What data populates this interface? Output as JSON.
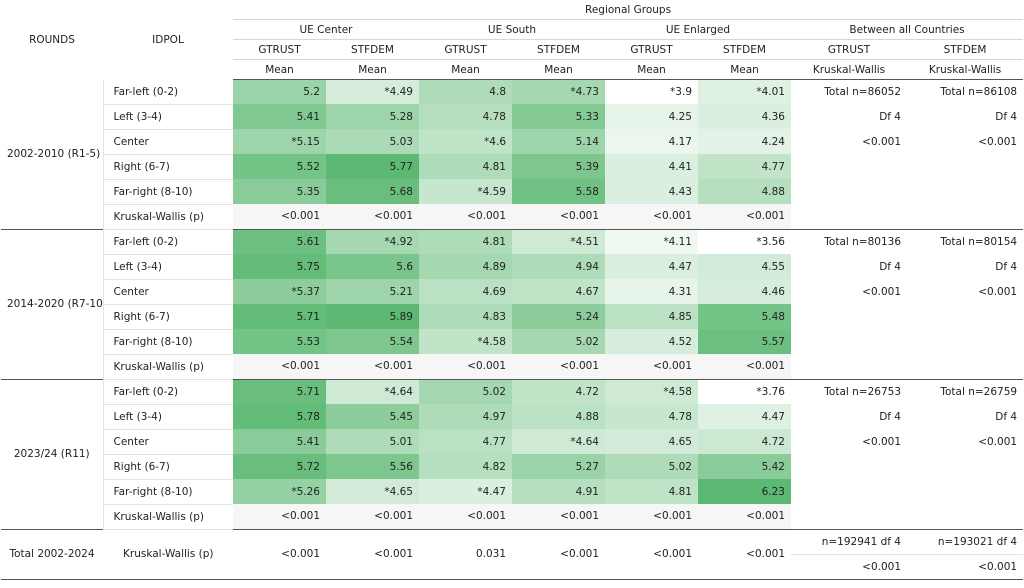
{
  "header": {
    "rounds": "ROUNDS",
    "idpol": "IDPOL",
    "regional_groups": "Regional Groups",
    "groups": [
      "UE Center",
      "UE South",
      "UE Enlarged",
      "Between all Countries"
    ],
    "vars": [
      "GTRUST",
      "STFDEM",
      "GTRUST",
      "STFDEM",
      "GTRUST",
      "STFDEM",
      "GTRUST",
      "STFDEM"
    ],
    "stats": [
      "Mean",
      "Mean",
      "Mean",
      "Mean",
      "Mean",
      "Mean",
      "Kruskal-Wallis",
      "Kruskal-Wallis"
    ]
  },
  "colors": {
    "cell_light": "#ffffff",
    "cell_dark": "#5cb872",
    "kw_bg": "#f6f6f6",
    "rule": "#555555"
  },
  "blocks": [
    {
      "round": "2002-2010 (R1-5)",
      "rows": [
        {
          "label": "Far-left (0-2)",
          "cells": [
            "5.2",
            "*4.49",
            "4.8",
            "*4.73",
            "*3.9",
            "*4.01"
          ],
          "shade": [
            0.62,
            0.25,
            0.5,
            0.55,
            0.0,
            0.2
          ],
          "side": [
            "Total n=86052",
            "Total n=86108"
          ]
        },
        {
          "label": "Left (3-4)",
          "cells": [
            "5.41",
            "5.28",
            "4.78",
            "5.33",
            "4.25",
            "4.36"
          ],
          "shade": [
            0.78,
            0.6,
            0.45,
            0.75,
            0.15,
            0.22
          ],
          "side": [
            "Df 4",
            "Df 4"
          ]
        },
        {
          "label": "Center",
          "cells": [
            "*5.15",
            "5.03",
            "*4.6",
            "5.14",
            "4.17",
            "4.24"
          ],
          "shade": [
            0.6,
            0.52,
            0.4,
            0.6,
            0.12,
            0.18
          ],
          "side": [
            "<0.001",
            "<0.001"
          ]
        },
        {
          "label": "Right (6-7)",
          "cells": [
            "5.52",
            "5.77",
            "4.81",
            "5.39",
            "4.41",
            "4.77"
          ],
          "shade": [
            0.85,
            1.0,
            0.5,
            0.8,
            0.22,
            0.38
          ],
          "side": [
            "",
            ""
          ]
        },
        {
          "label": "Far-right (8-10)",
          "cells": [
            "5.35",
            "5.68",
            "*4.59",
            "5.58",
            "4.43",
            "4.88"
          ],
          "shade": [
            0.72,
            0.92,
            0.35,
            0.88,
            0.22,
            0.45
          ],
          "side": [
            "",
            ""
          ]
        }
      ],
      "kw": {
        "label": "Kruskal-Wallis (p)",
        "cells": [
          "<0.001",
          "<0.001",
          "<0.001",
          "<0.001",
          "<0.001",
          "<0.001"
        ]
      }
    },
    {
      "round": "2014-2020 (R7-10)",
      "rows": [
        {
          "label": "Far-left (0-2)",
          "cells": [
            "5.61",
            "*4.92",
            "4.81",
            "*4.51",
            "*4.11",
            "*3.56"
          ],
          "shade": [
            0.9,
            0.55,
            0.5,
            0.3,
            0.1,
            0.0
          ],
          "side": [
            "Total n=80136",
            "Total n=80154"
          ]
        },
        {
          "label": "Left (3-4)",
          "cells": [
            "5.75",
            "5.6",
            "4.89",
            "4.94",
            "4.47",
            "4.55"
          ],
          "shade": [
            0.95,
            0.82,
            0.55,
            0.5,
            0.22,
            0.28
          ],
          "side": [
            "Df 4",
            "Df 4"
          ]
        },
        {
          "label": "Center",
          "cells": [
            "*5.37",
            "5.21",
            "4.69",
            "4.67",
            "4.31",
            "4.46"
          ],
          "shade": [
            0.7,
            0.6,
            0.42,
            0.38,
            0.15,
            0.25
          ],
          "side": [
            "<0.001",
            "<0.001"
          ]
        },
        {
          "label": "Right (6-7)",
          "cells": [
            "5.71",
            "5.89",
            "4.83",
            "5.24",
            "4.85",
            "5.48"
          ],
          "shade": [
            0.95,
            1.0,
            0.5,
            0.7,
            0.42,
            0.85
          ],
          "side": [
            "",
            ""
          ]
        },
        {
          "label": "Far-right (8-10)",
          "cells": [
            "5.53",
            "5.54",
            "*4.58",
            "5.02",
            "4.52",
            "5.57"
          ],
          "shade": [
            0.85,
            0.8,
            0.38,
            0.55,
            0.25,
            0.9
          ],
          "side": [
            "",
            ""
          ]
        }
      ],
      "kw": {
        "label": "Kruskal-Wallis (p)",
        "cells": [
          "<0.001",
          "<0.001",
          "<0.001",
          "<0.001",
          "<0.001",
          "<0.001"
        ]
      }
    },
    {
      "round": "2023/24 (R11)",
      "rows": [
        {
          "label": "Far-left (0-2)",
          "cells": [
            "5.71",
            "*4.64",
            "5.02",
            "4.72",
            "*4.58",
            "*3.76"
          ],
          "shade": [
            0.92,
            0.3,
            0.55,
            0.38,
            0.3,
            0.0
          ],
          "side": [
            "Total n=26753",
            "Total n=26759"
          ]
        },
        {
          "label": "Left (3-4)",
          "cells": [
            "5.78",
            "5.45",
            "4.97",
            "4.88",
            "4.78",
            "4.47"
          ],
          "shade": [
            0.95,
            0.7,
            0.5,
            0.42,
            0.35,
            0.2
          ],
          "side": [
            "Df 4",
            "Df 4"
          ]
        },
        {
          "label": "Center",
          "cells": [
            "5.41",
            "5.01",
            "4.77",
            "*4.64",
            "4.65",
            "4.72"
          ],
          "shade": [
            0.72,
            0.5,
            0.42,
            0.3,
            0.28,
            0.32
          ],
          "side": [
            "<0.001",
            "<0.001"
          ]
        },
        {
          "label": "Right (6-7)",
          "cells": [
            "5.72",
            "5.56",
            "4.82",
            "5.27",
            "5.02",
            "5.42"
          ],
          "shade": [
            0.92,
            0.8,
            0.45,
            0.62,
            0.5,
            0.72
          ],
          "side": [
            "",
            ""
          ]
        },
        {
          "label": "Far-right (8-10)",
          "cells": [
            "*5.26",
            "*4.65",
            "*4.47",
            "4.91",
            "4.81",
            "6.23"
          ],
          "shade": [
            0.65,
            0.28,
            0.22,
            0.45,
            0.4,
            1.0
          ],
          "side": [
            "",
            ""
          ]
        }
      ],
      "kw": {
        "label": "Kruskal-Wallis (p)",
        "cells": [
          "<0.001",
          "<0.001",
          "<0.001",
          "<0.001",
          "<0.001",
          "<0.001"
        ]
      }
    }
  ],
  "total": {
    "round": "Total 2002-2024",
    "label": "Kruskal-Wallis (p)",
    "cells": [
      "<0.001",
      "<0.001",
      "0.031",
      "<0.001",
      "<0.001",
      "<0.001"
    ],
    "side_top": [
      "n=192941 df 4",
      "n=193021 df 4"
    ],
    "side_bottom": [
      "<0.001",
      "<0.001"
    ]
  }
}
